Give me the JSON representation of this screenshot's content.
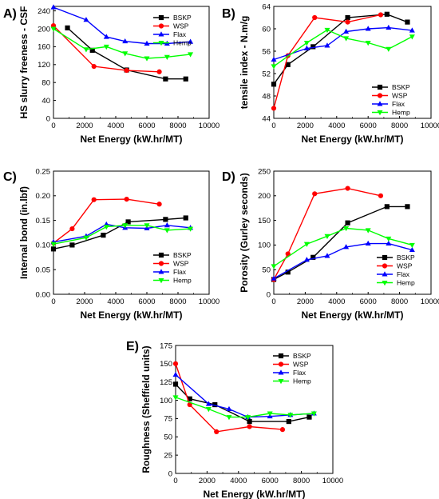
{
  "figure": {
    "chart_data": [
      {
        "panel": "A)",
        "type": "line",
        "xlabel": "Net Energy (kW.hr/MT)",
        "ylabel": "HS slurry freeness - CSF",
        "xlim": [
          0,
          10000
        ],
        "ylim": [
          0,
          250
        ],
        "xticks": [
          "0",
          "2000",
          "4000",
          "6000",
          "8000",
          "10000"
        ],
        "yticks": [
          "0",
          "40",
          "80",
          "120",
          "160",
          "200",
          "240"
        ],
        "legend_position": "top-right",
        "series": [
          {
            "name": "BSKP",
            "color": "#000000",
            "marker": "square",
            "x": [
              900,
              2500,
              4700,
              7200,
              8500
            ],
            "y": [
              202,
              152,
              108,
              88,
              88
            ]
          },
          {
            "name": "WSP",
            "color": "#ff0000",
            "marker": "circle",
            "x": [
              0,
              2600,
              4700,
              6800
            ],
            "y": [
              207,
              116,
              107,
              104
            ]
          },
          {
            "name": "Flax",
            "color": "#0000ff",
            "marker": "triangle-up",
            "x": [
              0,
              2100,
              3400,
              4600,
              6000,
              7300,
              8800
            ],
            "y": [
              248,
              220,
              182,
              172,
              167,
              167,
              171
            ]
          },
          {
            "name": "Hemp",
            "color": "#00ff00",
            "marker": "triangle-down",
            "x": [
              0,
              2100,
              3400,
              4600,
              6000,
              7300,
              8800
            ],
            "y": [
              200,
              154,
              160,
              145,
              134,
              137,
              143
            ]
          }
        ]
      },
      {
        "panel": "B)",
        "type": "line",
        "xlabel": "Net Energy (kW.hr/MT)",
        "ylabel": "tensile index - N.m/g",
        "xlim": [
          0,
          10000
        ],
        "ylim": [
          44,
          64
        ],
        "xticks": [
          "0",
          "2000",
          "4000",
          "6000",
          "8000",
          "10000"
        ],
        "yticks": [
          "44",
          "48",
          "52",
          "56",
          "60",
          "64"
        ],
        "legend_position": "bottom-right",
        "series": [
          {
            "name": "BSKP",
            "color": "#000000",
            "marker": "square",
            "x": [
              0,
              900,
              2500,
              4700,
              7200,
              8500
            ],
            "y": [
              50.1,
              53.6,
              56.8,
              62.0,
              62.6,
              61.2
            ]
          },
          {
            "name": "WSP",
            "color": "#ff0000",
            "marker": "circle",
            "x": [
              0,
              900,
              2600,
              4700,
              6800
            ],
            "y": [
              45.8,
              55.2,
              62.0,
              61.2,
              62.5
            ]
          },
          {
            "name": "Flax",
            "color": "#0000ff",
            "marker": "triangle-up",
            "x": [
              0,
              2100,
              3400,
              4600,
              6000,
              7300,
              8800
            ],
            "y": [
              54.5,
              56.5,
              57.0,
              59.5,
              60.0,
              60.2,
              59.7
            ]
          },
          {
            "name": "Hemp",
            "color": "#00ff00",
            "marker": "triangle-down",
            "x": [
              0,
              2100,
              3400,
              4600,
              6000,
              7300,
              8800
            ],
            "y": [
              53.3,
              57.5,
              59.8,
              58.3,
              57.5,
              56.4,
              58.6
            ]
          }
        ]
      },
      {
        "panel": "C)",
        "type": "line",
        "xlabel": "Net Energy (kW.hr/MT)",
        "ylabel": "Internal bond (in.lbf)",
        "xlim": [
          0,
          10000
        ],
        "ylim": [
          0,
          0.25
        ],
        "xticks": [
          "0",
          "2000",
          "4000",
          "6000",
          "8000",
          "10000"
        ],
        "yticks": [
          "0.00",
          "0.05",
          "0.10",
          "0.15",
          "0.20",
          "0.25"
        ],
        "legend_position": "bottom-right",
        "series": [
          {
            "name": "BSKP",
            "color": "#000000",
            "marker": "square",
            "x": [
              0,
              1200,
              3200,
              4800,
              7200,
              8500
            ],
            "y": [
              0.092,
              0.1,
              0.12,
              0.147,
              0.152,
              0.155
            ]
          },
          {
            "name": "WSP",
            "color": "#ff0000",
            "marker": "circle",
            "x": [
              0,
              1200,
              2600,
              4700,
              6800
            ],
            "y": [
              0.104,
              0.133,
              0.192,
              0.193,
              0.183
            ]
          },
          {
            "name": "Flax",
            "color": "#0000ff",
            "marker": "triangle-up",
            "x": [
              0,
              2100,
              3400,
              4600,
              6000,
              7300,
              8800
            ],
            "y": [
              0.106,
              0.118,
              0.142,
              0.135,
              0.134,
              0.14,
              0.135
            ]
          },
          {
            "name": "Hemp",
            "color": "#00ff00",
            "marker": "triangle-down",
            "x": [
              0,
              2100,
              3400,
              4600,
              6000,
              7300,
              8800
            ],
            "y": [
              0.102,
              0.115,
              0.137,
              0.14,
              0.14,
              0.13,
              0.133
            ]
          }
        ]
      },
      {
        "panel": "D)",
        "type": "line",
        "xlabel": "Net Energy (kW.hr/MT)",
        "ylabel": "Porosity (Gurley seconds)",
        "xlim": [
          0,
          10000
        ],
        "ylim": [
          0,
          250
        ],
        "xticks": [
          "0",
          "2000",
          "4000",
          "6000",
          "8000",
          "10000"
        ],
        "yticks": [
          "0",
          "50",
          "100",
          "150",
          "200",
          "250"
        ],
        "legend_position": "bottom-right",
        "series": [
          {
            "name": "BSKP",
            "color": "#000000",
            "marker": "square",
            "x": [
              0,
              900,
              2500,
              4700,
              7200,
              8500
            ],
            "y": [
              30,
              45,
              75,
              145,
              178,
              178
            ]
          },
          {
            "name": "WSP",
            "color": "#ff0000",
            "marker": "circle",
            "x": [
              0,
              900,
              2600,
              4700,
              6800
            ],
            "y": [
              30,
              82,
              204,
              215,
              200
            ]
          },
          {
            "name": "Flax",
            "color": "#0000ff",
            "marker": "triangle-up",
            "x": [
              0,
              2100,
              3400,
              4600,
              6000,
              7300,
              8800
            ],
            "y": [
              32,
              70,
              78,
              96,
              103,
              103,
              90
            ]
          },
          {
            "name": "Hemp",
            "color": "#00ff00",
            "marker": "triangle-down",
            "x": [
              0,
              2100,
              3400,
              4600,
              6000,
              7300,
              8800
            ],
            "y": [
              57,
              102,
              118,
              134,
              130,
              113,
              100
            ]
          }
        ]
      },
      {
        "panel": "E)",
        "type": "line",
        "xlabel": "Net Energy (kW.hr/MT)",
        "ylabel": "Roughness (Sheffield units)",
        "xlim": [
          0,
          10000
        ],
        "ylim": [
          0,
          175
        ],
        "xticks": [
          "0",
          "2000",
          "4000",
          "6000",
          "8000",
          "10000"
        ],
        "yticks": [
          "0",
          "25",
          "50",
          "75",
          "100",
          "125",
          "150",
          "175"
        ],
        "legend_position": "top-right",
        "series": [
          {
            "name": "BSKP",
            "color": "#000000",
            "marker": "square",
            "x": [
              0,
              900,
              2500,
              4700,
              7200,
              8500
            ],
            "y": [
              122,
              102,
              94,
              71,
              71,
              77
            ]
          },
          {
            "name": "WSP",
            "color": "#ff0000",
            "marker": "circle",
            "x": [
              0,
              900,
              2600,
              4700,
              6800
            ],
            "y": [
              150,
              94,
              57,
              64,
              60
            ]
          },
          {
            "name": "Flax",
            "color": "#0000ff",
            "marker": "triangle-up",
            "x": [
              0,
              2100,
              3400,
              4600,
              6000,
              7300,
              8800
            ],
            "y": [
              135,
              95,
              88,
              77,
              78,
              80,
              82
            ]
          },
          {
            "name": "Hemp",
            "color": "#00ff00",
            "marker": "triangle-down",
            "x": [
              0,
              2100,
              3400,
              4600,
              6000,
              7300,
              8800
            ],
            "y": [
              104,
              88,
              77,
              77,
              82,
              80,
              82
            ]
          }
        ]
      }
    ]
  }
}
